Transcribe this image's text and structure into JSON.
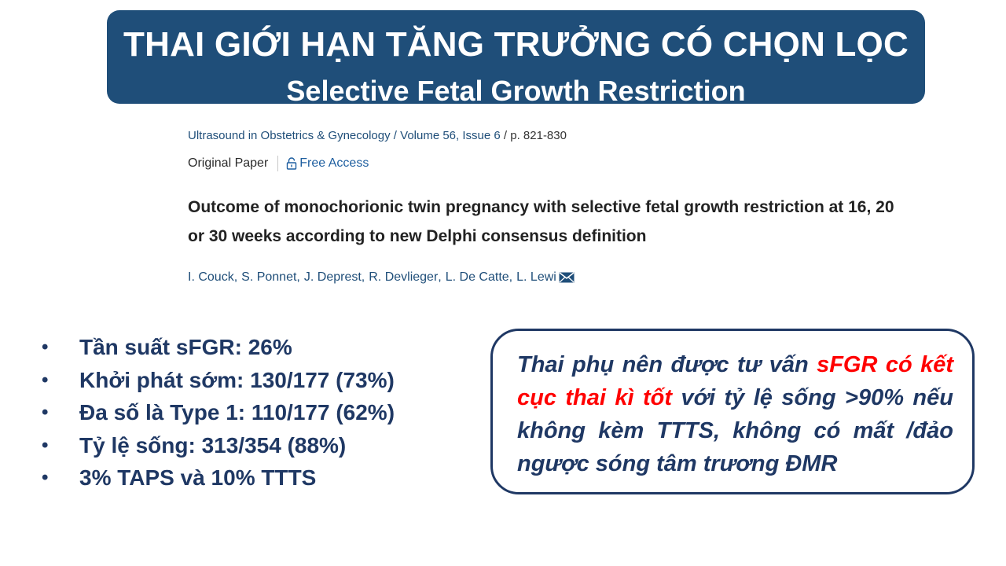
{
  "slide": {
    "title_vi": "THAI GIỚI HẠN TĂNG TRƯỞNG CÓ CHỌN LỌC",
    "title_en": "Selective Fetal Growth Restriction"
  },
  "paper": {
    "journal": "Ultrasound in Obstetrics & Gynecology",
    "journal_sep": " / ",
    "volume": "Volume 56, Issue 6",
    "pages": " /  p. 821-830",
    "type": "Original Paper",
    "access": "Free Access",
    "title": "Outcome of monochorionic twin pregnancy with selective fetal growth restriction at 16, 20 or 30 weeks according to new Delphi consensus definition",
    "authors": [
      "I. Couck",
      "S. Ponnet",
      "J. Deprest",
      "R. Devlieger",
      "L. De Catte",
      "L. Lewi"
    ],
    "author_sep": ",",
    "icons": {
      "access": "lock-icon",
      "contact": "mail-icon"
    }
  },
  "bullets": [
    "Tần suất sFGR: 26%",
    "Khởi phát sớm: 130/177 (73%)",
    "Đa số là Type 1: 110/177 (62%)",
    "Tỷ lệ sống: 313/354 (88%)",
    "3% TAPS và 10% TTTS"
  ],
  "bullet_marker": "•",
  "note": {
    "part1": "Thai phụ nên được tư vấn ",
    "highlight": "sFGR có kết cục thai kì tốt",
    "part2": " với tỷ lệ sống >90% nếu không kèm TTTS, không có mất /đảo ngược sóng tâm trương ĐMR"
  },
  "colors": {
    "title_bg": "#1f4e79",
    "text_dark_blue": "#1f3864",
    "highlight_red": "#ff0000",
    "link_blue": "#1f5fa0"
  }
}
